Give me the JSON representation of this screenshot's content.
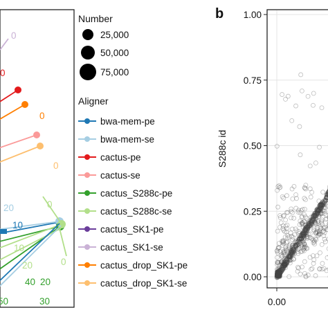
{
  "chart_data": [
    {
      "type": "line",
      "panel": "a",
      "panel_label": "",
      "title": "",
      "xlabel": "",
      "ylabel": "",
      "legend_position": "right",
      "legend": {
        "size_title": "Number",
        "sizes": [
          {
            "label": "25,000",
            "value": 25000
          },
          {
            "label": "50,000",
            "value": 50000
          },
          {
            "label": "75,000",
            "value": 75000
          }
        ],
        "color_title": "Aligner"
      },
      "series": [
        {
          "name": "bwa-mem-pe",
          "color": "#1f78b4",
          "labels": [
            "10"
          ]
        },
        {
          "name": "bwa-mem-se",
          "color": "#a6cee3",
          "labels": [
            "20"
          ]
        },
        {
          "name": "cactus-pe",
          "color": "#e31a1c",
          "labels": [
            "0"
          ]
        },
        {
          "name": "cactus-se",
          "color": "#fb9a99",
          "labels": []
        },
        {
          "name": "cactus_S288c-pe",
          "color": "#33a02c",
          "labels": [
            "20",
            "40",
            "30",
            "50"
          ]
        },
        {
          "name": "cactus_S288c-se",
          "color": "#b2df8a",
          "labels": [
            "0",
            "10",
            "0",
            "20"
          ]
        },
        {
          "name": "cactus_SK1-pe",
          "color": "#6a3d9a",
          "labels": []
        },
        {
          "name": "cactus_SK1-se",
          "color": "#cab2d6",
          "labels": [
            "0"
          ]
        },
        {
          "name": "cactus_drop_SK1-pe",
          "color": "#ff7f00",
          "labels": [
            "0"
          ]
        },
        {
          "name": "cactus_drop_SK1-se",
          "color": "#fdbf6f",
          "labels": [
            "0"
          ]
        }
      ]
    },
    {
      "type": "scatter",
      "panel": "b",
      "panel_label": "b",
      "title": "",
      "xlabel": "",
      "ylabel": "S288c id",
      "xlim": [
        -0.02,
        0.3
      ],
      "ylim": [
        -0.05,
        1.0
      ],
      "x_ticks": [
        {
          "value": 0.0,
          "label": "0.00"
        }
      ],
      "y_ticks": [
        {
          "value": 0.0,
          "label": "0.00"
        },
        {
          "value": 0.25,
          "label": "0.25"
        },
        {
          "value": 0.5,
          "label": "0.50"
        },
        {
          "value": 0.75,
          "label": "0.75"
        },
        {
          "value": 1.0,
          "label": "1.00"
        }
      ],
      "grid": true,
      "point_color": "#444444"
    }
  ]
}
